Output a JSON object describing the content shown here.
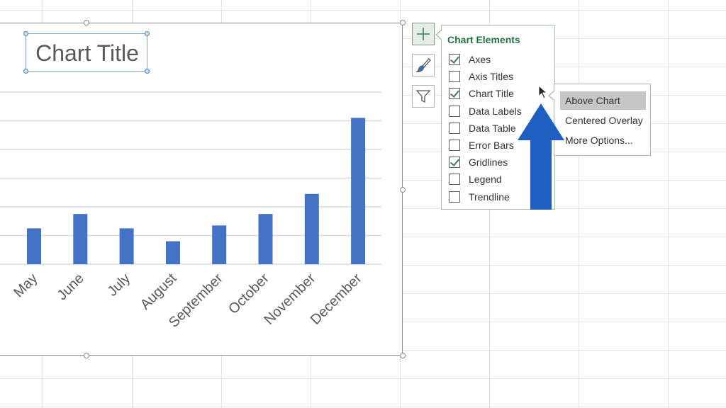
{
  "chart": {
    "title": "Chart Title"
  },
  "chart_data": {
    "type": "bar",
    "title": "Chart Title",
    "categories": [
      "May",
      "June",
      "July",
      "August",
      "September",
      "October",
      "November",
      "December"
    ],
    "values": [
      50,
      70,
      50,
      32,
      54,
      70,
      98,
      204
    ],
    "ylim": [
      0,
      240
    ],
    "grid": true,
    "legend": "none",
    "bar_color": "#4472c4"
  },
  "side_buttons": [
    {
      "name": "chart-elements",
      "icon": "plus-icon"
    },
    {
      "name": "chart-styles",
      "icon": "paintbrush-icon"
    },
    {
      "name": "chart-filters",
      "icon": "filter-icon"
    }
  ],
  "panel": {
    "title": "Chart Elements",
    "items": [
      {
        "label": "Axes",
        "checked": true
      },
      {
        "label": "Axis Titles",
        "checked": false
      },
      {
        "label": "Chart Title",
        "checked": true
      },
      {
        "label": "Data Labels",
        "checked": false
      },
      {
        "label": "Data Table",
        "checked": false
      },
      {
        "label": "Error Bars",
        "checked": false
      },
      {
        "label": "Gridlines",
        "checked": true
      },
      {
        "label": "Legend",
        "checked": false
      },
      {
        "label": "Trendline",
        "checked": false
      }
    ]
  },
  "submenu": {
    "items": [
      {
        "label": "Above Chart",
        "highlighted": true
      },
      {
        "label": "Centered Overlay",
        "highlighted": false
      },
      {
        "label": "More Options...",
        "highlighted": false
      }
    ]
  },
  "colors": {
    "accent_green": "#217346",
    "annotation_arrow": "#1f5fc2",
    "gridline": "#d9d9d9"
  }
}
